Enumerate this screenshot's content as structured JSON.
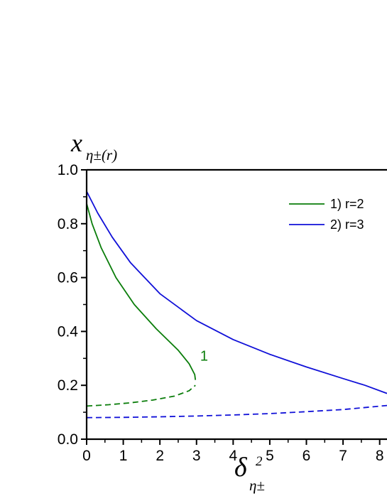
{
  "chart_data": {
    "type": "line",
    "x_axis": {
      "label_symbol": "δ",
      "label_superscript": "2",
      "label_subscript": "η±",
      "range": [
        0,
        8.2
      ],
      "ticks": [
        "0",
        "1",
        "2",
        "3",
        "4",
        "5",
        "6",
        "7",
        "8"
      ]
    },
    "y_axis": {
      "label_symbol": "x",
      "label_subscript": "η±(r)",
      "range": [
        0.0,
        1.0
      ],
      "ticks": [
        "0.0",
        "0.2",
        "0.4",
        "0.6",
        "0.8",
        "1.0"
      ]
    },
    "grid": false,
    "legend": {
      "position": "top-right",
      "entries": [
        {
          "label": "1) r=2",
          "color": "#0a7d0a"
        },
        {
          "label": "2) r=3",
          "color": "#1010d8"
        }
      ]
    },
    "annotations": [
      {
        "text": "1",
        "x": 3.1,
        "y": 0.31,
        "color": "#0a7d0a"
      }
    ],
    "series": [
      {
        "name": "1) r=2",
        "color": "#0a7d0a",
        "style": "solid",
        "points": [
          [
            0,
            0.875
          ],
          [
            0.15,
            0.8
          ],
          [
            0.4,
            0.71
          ],
          [
            0.8,
            0.6
          ],
          [
            1.3,
            0.5
          ],
          [
            1.9,
            0.41
          ],
          [
            2.5,
            0.33
          ],
          [
            2.8,
            0.28
          ],
          [
            2.95,
            0.24
          ],
          [
            2.97,
            0.22
          ]
        ]
      },
      {
        "name": "1) r=2",
        "color": "#0a7d0a",
        "style": "dashed",
        "points": [
          [
            0,
            0.123
          ],
          [
            0.6,
            0.128
          ],
          [
            1.2,
            0.135
          ],
          [
            1.8,
            0.145
          ],
          [
            2.4,
            0.16
          ],
          [
            2.8,
            0.18
          ],
          [
            2.97,
            0.2
          ]
        ]
      },
      {
        "name": "2) r=3",
        "color": "#1010d8",
        "style": "solid",
        "points": [
          [
            0,
            0.92
          ],
          [
            0.3,
            0.84
          ],
          [
            0.7,
            0.75
          ],
          [
            1.2,
            0.655
          ],
          [
            2,
            0.54
          ],
          [
            3,
            0.44
          ],
          [
            4,
            0.37
          ],
          [
            5,
            0.315
          ],
          [
            6,
            0.268
          ],
          [
            7,
            0.225
          ],
          [
            7.6,
            0.2
          ],
          [
            8.2,
            0.17
          ]
        ]
      },
      {
        "name": "2) r=3",
        "color": "#1010d8",
        "style": "dashed",
        "points": [
          [
            0,
            0.08
          ],
          [
            1,
            0.081
          ],
          [
            2,
            0.083
          ],
          [
            3,
            0.086
          ],
          [
            4,
            0.09
          ],
          [
            5,
            0.095
          ],
          [
            6,
            0.102
          ],
          [
            7,
            0.11
          ],
          [
            8.2,
            0.125
          ]
        ]
      }
    ]
  }
}
